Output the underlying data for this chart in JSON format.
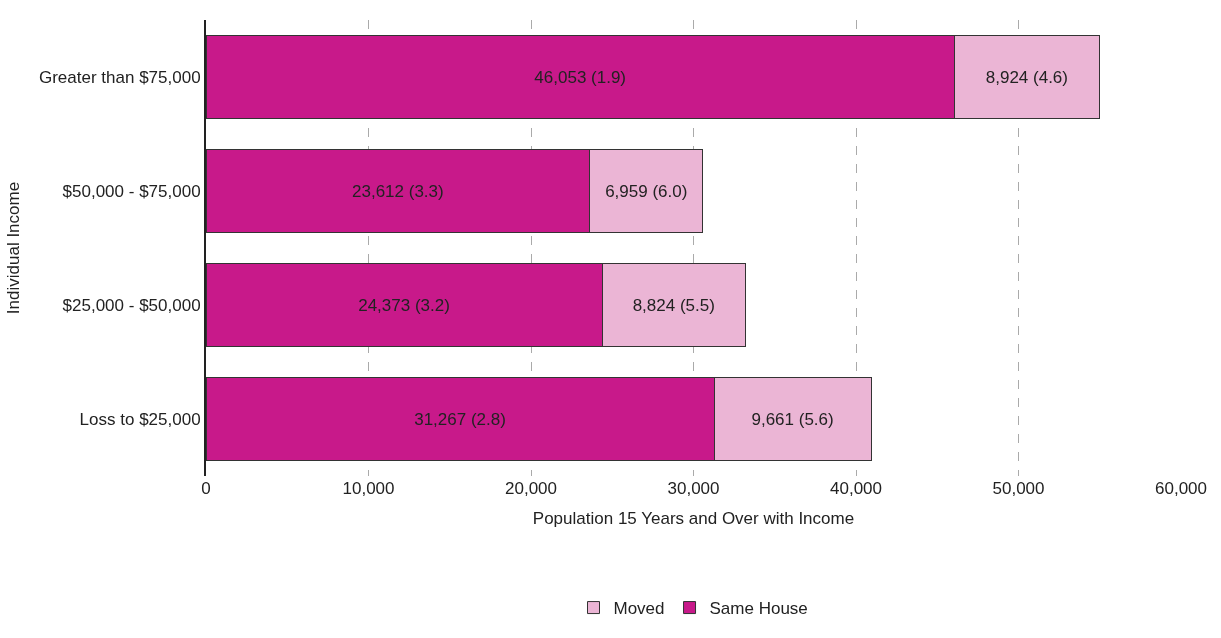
{
  "chart_data": {
    "type": "bar",
    "orientation": "horizontal",
    "stacked": true,
    "categories": [
      "Greater than $75,000",
      "$50,000 - $75,000",
      "$25,000 - $50,000",
      "Loss to $25,000"
    ],
    "series": [
      {
        "name": "Same House",
        "color": "#c8198a",
        "values": [
          46053,
          23612,
          24373,
          31267
        ],
        "value_labels": [
          "46,053 (1.9)",
          "23,612 (3.3)",
          "24,373 (3.2)",
          "31,267 (2.8)"
        ]
      },
      {
        "name": "Moved",
        "color": "#ebb5d5",
        "values": [
          8924,
          6959,
          8824,
          9661
        ],
        "value_labels": [
          "8,924 (4.6)",
          "6,959 (6.0)",
          "8,824 (5.5)",
          "9,661 (5.6)"
        ]
      }
    ],
    "xlabel": "Population 15 Years and Over with Income",
    "ylabel": "Individual Income",
    "xlim": [
      0,
      60000
    ],
    "xticks": [
      0,
      {
        "value": 10000,
        "label": "10,000"
      },
      {
        "value": 20000,
        "label": "20,000"
      },
      {
        "value": 30000,
        "label": "30,000"
      },
      {
        "value": 40000,
        "label": "40,000"
      },
      {
        "value": 50000,
        "label": "50,000"
      },
      {
        "value": 60000,
        "label": "60,000"
      }
    ],
    "grid": "x",
    "legend": "bottom"
  }
}
